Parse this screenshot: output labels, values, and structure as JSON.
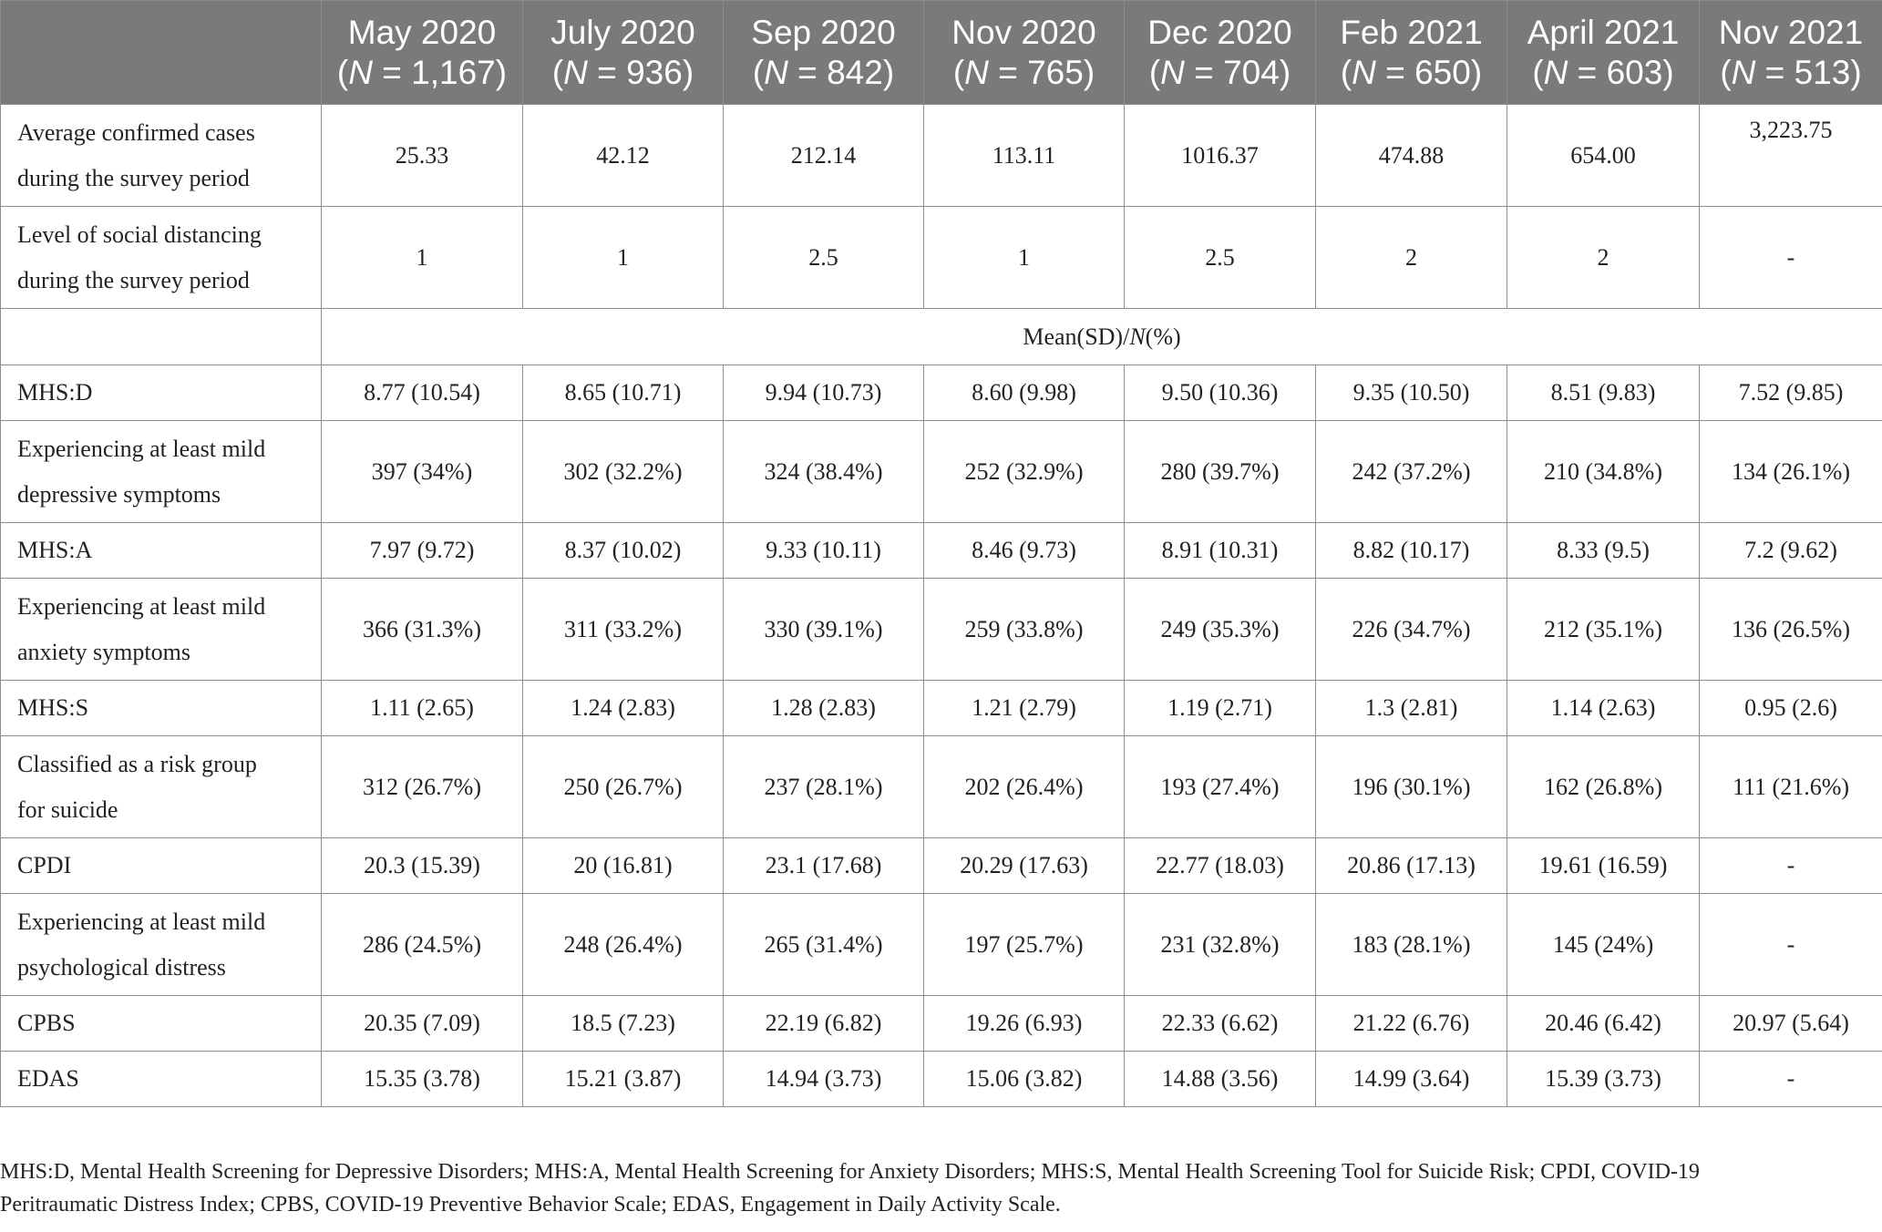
{
  "columns": [
    {
      "month": "May 2020",
      "n": "1,167"
    },
    {
      "month": "July 2020",
      "n": "936"
    },
    {
      "month": "Sep 2020",
      "n": "842"
    },
    {
      "month": "Nov 2020",
      "n": "765"
    },
    {
      "month": "Dec 2020",
      "n": "704"
    },
    {
      "month": "Feb 2021",
      "n": "650"
    },
    {
      "month": "April 2021",
      "n": "603"
    },
    {
      "month": "Nov 2021",
      "n": "513"
    }
  ],
  "n_prefix": "N",
  "n_open": "(",
  "n_eq": " = ",
  "n_close": ")",
  "subheader": {
    "mean": "Mean(SD)/",
    "n": "N",
    "pct": "(%)"
  },
  "rows_top": [
    {
      "label_1": "Average confirmed cases",
      "label_2": "during the survey period",
      "values": [
        "25.33",
        "42.12",
        "212.14",
        "113.11",
        "1016.37",
        "474.88",
        "654.00",
        "3,223.75"
      ]
    },
    {
      "label_1": "Level of social distancing",
      "label_2": "during the survey period",
      "values": [
        "1",
        "1",
        "2.5",
        "1",
        "2.5",
        "2",
        "2",
        "-"
      ]
    }
  ],
  "rows": [
    {
      "label_1": "MHS:D",
      "label_2": "",
      "values": [
        "8.77 (10.54)",
        "8.65 (10.71)",
        "9.94 (10.73)",
        "8.60 (9.98)",
        "9.50 (10.36)",
        "9.35 (10.50)",
        "8.51 (9.83)",
        "7.52 (9.85)"
      ]
    },
    {
      "label_1": "Experiencing at least mild",
      "label_2": "depressive symptoms",
      "values": [
        "397 (34%)",
        "302 (32.2%)",
        "324 (38.4%)",
        "252 (32.9%)",
        "280 (39.7%)",
        "242 (37.2%)",
        "210 (34.8%)",
        "134 (26.1%)"
      ]
    },
    {
      "label_1": "MHS:A",
      "label_2": "",
      "values": [
        "7.97 (9.72)",
        "8.37 (10.02)",
        "9.33 (10.11)",
        "8.46 (9.73)",
        "8.91 (10.31)",
        "8.82 (10.17)",
        "8.33 (9.5)",
        "7.2 (9.62)"
      ]
    },
    {
      "label_1": "Experiencing at least mild",
      "label_2": "anxiety symptoms",
      "values": [
        "366 (31.3%)",
        "311 (33.2%)",
        "330 (39.1%)",
        "259 (33.8%)",
        "249 (35.3%)",
        "226 (34.7%)",
        "212 (35.1%)",
        "136 (26.5%)"
      ]
    },
    {
      "label_1": "MHS:S",
      "label_2": "",
      "values": [
        "1.11 (2.65)",
        "1.24 (2.83)",
        "1.28 (2.83)",
        "1.21 (2.79)",
        "1.19 (2.71)",
        "1.3 (2.81)",
        "1.14 (2.63)",
        "0.95 (2.6)"
      ]
    },
    {
      "label_1": "Classified as a risk group",
      "label_2": "for suicide",
      "values": [
        "312 (26.7%)",
        "250 (26.7%)",
        "237 (28.1%)",
        "202 (26.4%)",
        "193 (27.4%)",
        "196 (30.1%)",
        "162 (26.8%)",
        "111 (21.6%)"
      ]
    },
    {
      "label_1": "CPDI",
      "label_2": "",
      "values": [
        "20.3 (15.39)",
        "20 (16.81)",
        "23.1 (17.68)",
        "20.29 (17.63)",
        "22.77 (18.03)",
        "20.86 (17.13)",
        "19.61 (16.59)",
        "-"
      ]
    },
    {
      "label_1": "Experiencing at least mild",
      "label_2": "psychological distress",
      "values": [
        "286 (24.5%)",
        "248 (26.4%)",
        "265 (31.4%)",
        "197 (25.7%)",
        "231 (32.8%)",
        "183 (28.1%)",
        "145 (24%)",
        "-"
      ]
    },
    {
      "label_1": "CPBS",
      "label_2": "",
      "values": [
        "20.35 (7.09)",
        "18.5 (7.23)",
        "22.19 (6.82)",
        "19.26 (6.93)",
        "22.33 (6.62)",
        "21.22 (6.76)",
        "20.46 (6.42)",
        "20.97 (5.64)"
      ]
    },
    {
      "label_1": "EDAS",
      "label_2": "",
      "values": [
        "15.35 (3.78)",
        "15.21 (3.87)",
        "14.94 (3.73)",
        "15.06 (3.82)",
        "14.88 (3.56)",
        "14.99 (3.64)",
        "15.39 (3.73)",
        "-"
      ]
    }
  ],
  "footnote": {
    "line_1": "MHS:D, Mental Health Screening for Depressive Disorders; MHS:A, Mental Health Screening for Anxiety Disorders; MHS:S, Mental Health Screening Tool for Suicide Risk; CPDI, COVID-19",
    "line_2": "Peritraumatic Distress Index; CPBS, COVID-19 Preventive Behavior Scale; EDAS, Engagement in Daily Activity Scale."
  }
}
